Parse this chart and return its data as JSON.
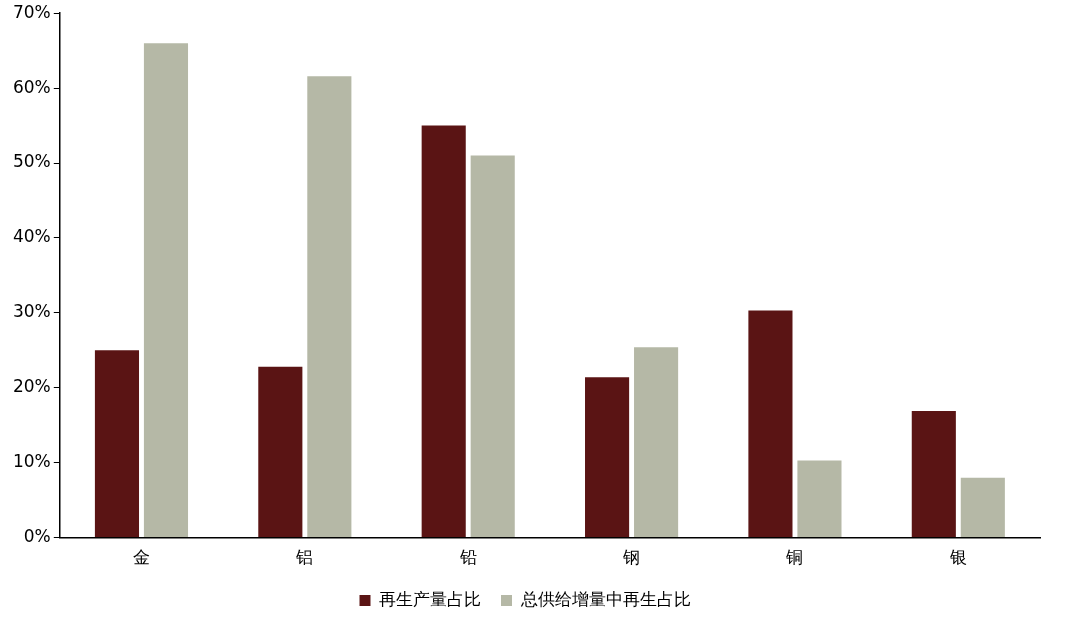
{
  "chart_data": {
    "type": "bar",
    "categories": [
      "金",
      "铝",
      "铅",
      "钢",
      "铜",
      "银"
    ],
    "series": [
      {
        "name": "再生产量占比",
        "color": "#5a1414",
        "values": [
          25,
          22.8,
          55,
          21.4,
          30.3,
          16.9
        ]
      },
      {
        "name": "总供给增量中再生占比",
        "color": "#b5b8a6",
        "values": [
          66,
          61.6,
          51,
          25.4,
          10.3,
          8
        ]
      }
    ],
    "ylim": [
      0,
      70
    ],
    "yticks": [
      {
        "value": 0,
        "label": "0%"
      },
      {
        "value": 10,
        "label": "10%"
      },
      {
        "value": 20,
        "label": "20%"
      },
      {
        "value": 30,
        "label": "30%"
      },
      {
        "value": 40,
        "label": "40%"
      },
      {
        "value": 50,
        "label": "50%"
      },
      {
        "value": 60,
        "label": "60%"
      },
      {
        "value": 70,
        "label": "70%"
      }
    ],
    "grid": false,
    "legend": "bottom"
  }
}
